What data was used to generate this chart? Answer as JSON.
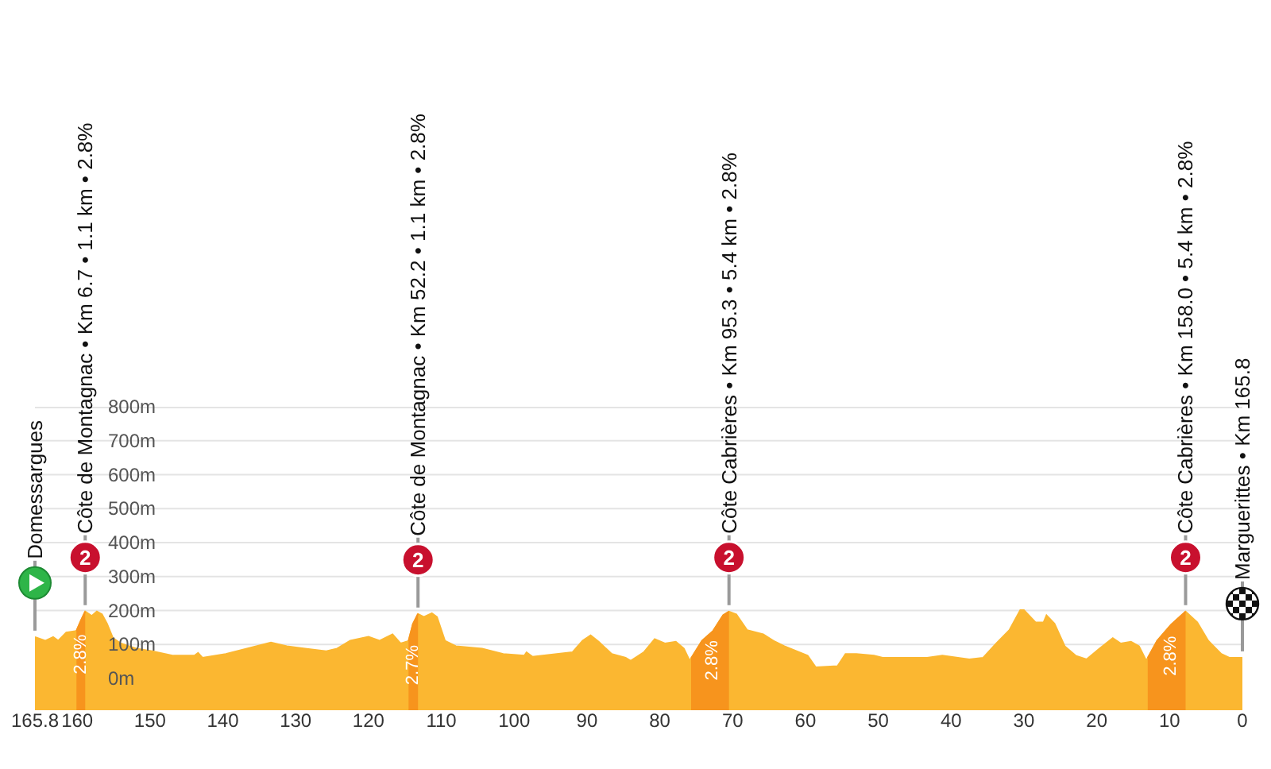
{
  "chart_data": {
    "type": "area",
    "x": [
      165.8,
      164.4,
      163.3,
      162.6,
      161.5,
      160.1,
      159.5,
      158.9,
      158.0,
      157.3,
      156.6,
      155.9,
      155.1,
      154.0,
      151.9,
      149.7,
      146.8,
      143.9,
      143.4,
      142.8,
      139.6,
      136.7,
      133.4,
      131.2,
      128.7,
      125.8,
      124.3,
      122.5,
      120.0,
      118.5,
      116.7,
      115.6,
      114.5,
      113.9,
      113.2,
      112.4,
      111.3,
      110.6,
      109.5,
      108.0,
      104.4,
      101.5,
      98.6,
      98.3,
      97.5,
      92.0,
      90.6,
      89.5,
      88.4,
      86.6,
      84.7,
      84.0,
      82.2,
      80.7,
      79.3,
      77.8,
      76.7,
      75.9,
      74.2,
      72.7,
      71.3,
      70.5,
      69.5,
      68.0,
      65.8,
      64.4,
      62.9,
      59.7,
      58.6,
      55.6,
      54.5,
      53.0,
      50.6,
      49.4,
      43.3,
      41.2,
      37.5,
      35.6,
      33.8,
      32.0,
      30.5,
      30.0,
      28.4,
      27.3,
      26.9,
      25.8,
      24.4,
      22.9,
      21.4,
      19.6,
      17.8,
      16.7,
      15.3,
      14.2,
      13.2,
      11.7,
      9.8,
      7.8,
      6.2,
      4.7,
      2.9,
      1.8,
      0
    ],
    "series": [
      {
        "color": "#fbb731",
        "values": [
          122,
          111,
          122,
          111,
          135,
          140,
          170,
          197,
          184,
          197,
          189,
          161,
          119,
          103,
          88,
          80,
          67,
          67,
          75,
          61,
          72,
          88,
          106,
          95,
          88,
          80,
          88,
          111,
          123,
          111,
          130,
          103,
          110,
          160,
          190,
          181,
          192,
          181,
          111,
          95,
          88,
          72,
          67,
          77,
          64,
          77,
          111,
          127,
          108,
          72,
          61,
          52,
          77,
          116,
          103,
          108,
          88,
          52,
          111,
          139,
          186,
          197,
          189,
          142,
          130,
          111,
          95,
          67,
          33,
          36,
          72,
          72,
          67,
          61,
          61,
          67,
          56,
          61,
          103,
          142,
          201,
          201,
          165,
          165,
          186,
          161,
          95,
          67,
          56,
          88,
          119,
          103,
          108,
          95,
          52,
          111,
          158,
          197,
          165,
          111,
          72,
          61,
          61
        ]
      },
      {
        "color": "#f7941d",
        "x": [
          160.1,
          159.5,
          158.9
        ],
        "values": [
          140,
          170,
          197
        ]
      },
      {
        "color": "#f7941d",
        "x": [
          114.5,
          113.9,
          113.2
        ],
        "values": [
          110,
          160,
          190
        ]
      },
      {
        "color": "#f7941d",
        "x": [
          75.7,
          74.2,
          72.7,
          71.3,
          70.5
        ],
        "values": [
          59,
          111,
          139,
          186,
          197
        ]
      },
      {
        "color": "#f7941d",
        "x": [
          13.0,
          11.7,
          9.8,
          7.8
        ],
        "values": [
          60,
          111,
          158,
          197
        ]
      }
    ],
    "xlim": [
      165.8,
      0
    ],
    "xticks": [
      165.8,
      160,
      150,
      140,
      130,
      120,
      110,
      100,
      90,
      80,
      70,
      60,
      50,
      40,
      30,
      20,
      10,
      0
    ],
    "ylim": [
      0,
      800
    ],
    "yticks": [
      {
        "value": 0,
        "label": "0m"
      },
      {
        "value": 100,
        "label": "100m"
      },
      {
        "value": 200,
        "label": "200m"
      },
      {
        "value": 300,
        "label": "300m"
      },
      {
        "value": 400,
        "label": "400m"
      },
      {
        "value": 500,
        "label": "500m"
      },
      {
        "value": 600,
        "label": "600m"
      },
      {
        "value": 700,
        "label": "700m"
      },
      {
        "value": 800,
        "label": "800m"
      }
    ],
    "grid": "y",
    "annotations": [
      {
        "text": "Domessargues",
        "x": 165.8,
        "y": 122
      },
      {
        "text": "2",
        "x": 158.9,
        "y": 197
      },
      {
        "text": "Côte de Montagnac • Km 6.7 • 1.1 km • 2.8%",
        "x": 158.9,
        "y": 197
      },
      {
        "text": "2.8%",
        "x": 159.5,
        "y": 170
      },
      {
        "text": "2",
        "x": 113.2,
        "y": 190
      },
      {
        "text": "Côte de Montagnac • Km 52.2 • 1.1 km • 2.8%",
        "x": 113.2,
        "y": 190
      },
      {
        "text": "2.7%",
        "x": 113.9,
        "y": 160
      },
      {
        "text": "2",
        "x": 70.5,
        "y": 197
      },
      {
        "text": "Côte Cabrières • Km 95.3 • 5.4 km • 2.8%",
        "x": 70.5,
        "y": 197
      },
      {
        "text": "2.8%",
        "x": 72.7,
        "y": 139
      },
      {
        "text": "2",
        "x": 7.8,
        "y": 197
      },
      {
        "text": "Côte Cabrières • Km 158.0 • 5.4 km • 2.8%",
        "x": 7.8,
        "y": 197
      },
      {
        "text": "2.8%",
        "x": 9.8,
        "y": 158
      },
      {
        "text": "Marguerittes • Km 165.8",
        "x": 0,
        "y": 61
      }
    ]
  }
}
